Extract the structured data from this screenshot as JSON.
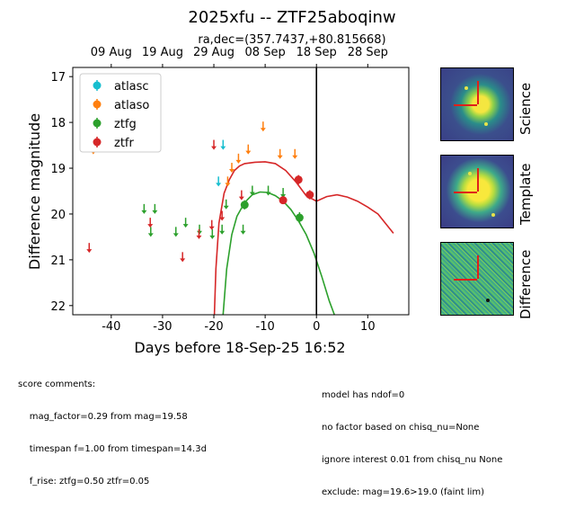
{
  "figure": {
    "title": "2025xfu -- ZTF25aboqinw",
    "subtitle": "ra,dec=(357.7437,+80.815668)",
    "colors": {
      "atlasc": "#17becf",
      "atlaso": "#ff7f0e",
      "ztfg": "#2ca02c",
      "ztfr": "#d62728",
      "axis": "#000000"
    }
  },
  "chart_data": {
    "type": "scatter",
    "xlabel": "Days before 18-Sep-25 16:52",
    "ylabel": "Difference magnitude",
    "xlim": [
      -47.5,
      18
    ],
    "ylim": [
      22.2,
      16.8
    ],
    "y_inverted": true,
    "xticks": [
      -40,
      -30,
      -20,
      -10,
      0,
      10
    ],
    "yticks": [
      17,
      18,
      19,
      20,
      21,
      22
    ],
    "top_axis_ticks": [
      {
        "x": -40,
        "label": "09 Aug"
      },
      {
        "x": -30,
        "label": "19 Aug"
      },
      {
        "x": -20,
        "label": "29 Aug"
      },
      {
        "x": -10,
        "label": "08 Sep"
      },
      {
        "x": 0,
        "label": "18 Sep"
      },
      {
        "x": 10,
        "label": "28 Sep"
      }
    ],
    "vline_x": 0,
    "legend": [
      "atlasc",
      "atlaso",
      "ztfg",
      "ztfr"
    ],
    "legend_position": "top-left",
    "detections": [
      {
        "series": "ztfg",
        "x": -14,
        "y": 19.8,
        "err": 0.1
      },
      {
        "series": "ztfg",
        "x": -3.3,
        "y": 20.08,
        "err": 0.12
      },
      {
        "series": "ztfr",
        "x": -3.5,
        "y": 19.25,
        "err": 0.1
      },
      {
        "series": "ztfr",
        "x": -1.3,
        "y": 19.58,
        "err": 0.1
      },
      {
        "series": "ztfr",
        "x": -6.5,
        "y": 19.7,
        "err": 0.08
      }
    ],
    "upper_limits": [
      {
        "series": "atlaso",
        "x": -43.5,
        "y": 18.6
      },
      {
        "series": "atlaso",
        "x": -17.3,
        "y": 19.3
      },
      {
        "series": "atlaso",
        "x": -16.5,
        "y": 19.0
      },
      {
        "series": "atlaso",
        "x": -15.2,
        "y": 18.8
      },
      {
        "series": "atlaso",
        "x": -13.3,
        "y": 18.6
      },
      {
        "series": "atlaso",
        "x": -10.4,
        "y": 18.1
      },
      {
        "series": "atlaso",
        "x": -7.1,
        "y": 18.7
      },
      {
        "series": "atlaso",
        "x": -4.2,
        "y": 18.7
      },
      {
        "series": "atlasc",
        "x": -19.1,
        "y": 19.3
      },
      {
        "series": "atlasc",
        "x": -18.2,
        "y": 18.5
      },
      {
        "series": "ztfg",
        "x": -33.6,
        "y": 19.9
      },
      {
        "series": "ztfg",
        "x": -31.5,
        "y": 19.9
      },
      {
        "series": "ztfg",
        "x": -32.3,
        "y": 20.4
      },
      {
        "series": "ztfg",
        "x": -27.4,
        "y": 20.4
      },
      {
        "series": "ztfg",
        "x": -25.5,
        "y": 20.2
      },
      {
        "series": "ztfg",
        "x": -22.8,
        "y": 20.35
      },
      {
        "series": "ztfg",
        "x": -20.3,
        "y": 20.45
      },
      {
        "series": "ztfg",
        "x": -18.4,
        "y": 20.35
      },
      {
        "series": "ztfg",
        "x": -14.3,
        "y": 20.35
      },
      {
        "series": "ztfg",
        "x": -17.6,
        "y": 19.8
      },
      {
        "series": "ztfg",
        "x": -12.5,
        "y": 19.5
      },
      {
        "series": "ztfg",
        "x": -9.4,
        "y": 19.5
      },
      {
        "series": "ztfg",
        "x": -6.5,
        "y": 19.55
      },
      {
        "series": "ztfr",
        "x": -44.3,
        "y": 20.75
      },
      {
        "series": "ztfr",
        "x": -32.4,
        "y": 20.2
      },
      {
        "series": "ztfr",
        "x": -26.1,
        "y": 20.95
      },
      {
        "series": "ztfr",
        "x": -22.9,
        "y": 20.45
      },
      {
        "series": "ztfr",
        "x": -20.4,
        "y": 20.25
      },
      {
        "series": "ztfr",
        "x": -20.0,
        "y": 18.5
      },
      {
        "series": "ztfr",
        "x": -18.4,
        "y": 20.05
      },
      {
        "series": "ztfr",
        "x": -14.6,
        "y": 19.6
      }
    ],
    "model_curves": [
      {
        "series": "ztfr",
        "x": [
          -19.9,
          -19.6,
          -19.0,
          -18.0,
          -17.0,
          -16.0,
          -15.0,
          -14.0,
          -12.0,
          -10.0,
          -8.0,
          -6.0,
          -4.0,
          -2.0,
          0.0,
          2.0,
          4.0,
          6.0,
          8.0,
          10.0,
          12.0,
          15.0
        ],
        "y": [
          22.2,
          21.2,
          20.2,
          19.55,
          19.25,
          19.05,
          18.95,
          18.9,
          18.87,
          18.86,
          18.9,
          19.05,
          19.3,
          19.6,
          19.72,
          19.62,
          19.58,
          19.63,
          19.72,
          19.85,
          20.0,
          20.42
        ]
      },
      {
        "series": "ztfg",
        "x": [
          -18.2,
          -17.5,
          -16.5,
          -15.5,
          -14.0,
          -12.5,
          -11.0,
          -9.5,
          -8.0,
          -6.5,
          -5.0,
          -3.5,
          -2.0,
          -0.5,
          1.0,
          2.5,
          3.5
        ],
        "y": [
          22.2,
          21.2,
          20.45,
          20.05,
          19.75,
          19.58,
          19.52,
          19.53,
          19.6,
          19.72,
          19.9,
          20.15,
          20.45,
          20.85,
          21.35,
          21.9,
          22.2
        ]
      }
    ]
  },
  "stamps": {
    "science_label": "Science",
    "template_label": "Template",
    "difference_label": "Difference"
  },
  "comments": {
    "left_lines": [
      "score comments:",
      "    mag_factor=0.29 from mag=19.58",
      "    timespan f=1.00 from timespan=14.3d",
      "    f_rise: ztfg=0.50 ztfr=0.05"
    ],
    "right_lines": [
      "model has ndof=0",
      "no factor based on chisq_nu=None",
      "ignore interest 0.01 from chisq_nu None",
      "exclude: mag=19.6>19.0 (faint lim)"
    ]
  }
}
